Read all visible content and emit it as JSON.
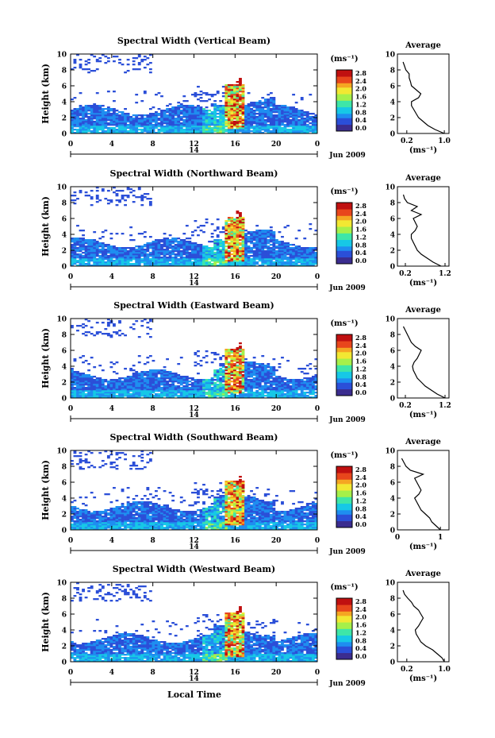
{
  "figure": {
    "xlabel": "Local Time",
    "date_label": "Jun 2009",
    "day_label": "14",
    "colorbar_unit": "(ms⁻¹)",
    "colorbar_ticks": [
      "0.0",
      "0.4",
      "0.8",
      "1.2",
      "1.6",
      "2.0",
      "2.4",
      "2.8"
    ],
    "average_title": "Average",
    "average_unit": "(ms⁻¹)"
  },
  "colors": {
    "scale": [
      "#3b2d8f",
      "#2b4fd8",
      "#1e8ef0",
      "#17c8e6",
      "#3ee6a8",
      "#a6f04a",
      "#f2e833",
      "#f5a623",
      "#e8461c",
      "#c01010"
    ],
    "background": "#ffffff",
    "axis": "#000000"
  },
  "chart_data": [
    {
      "type": "heatmap",
      "title": "Spectral Width (Vertical Beam)",
      "ylabel": "Height (km)",
      "xlim": [
        0,
        24
      ],
      "ylim": [
        0,
        10
      ],
      "xticks": [
        "0",
        "4",
        "8",
        "12",
        "16",
        "20",
        "0"
      ],
      "yticks": [
        "0",
        "2",
        "4",
        "6",
        "8",
        "10"
      ],
      "value_range": [
        0.0,
        2.8
      ],
      "average_profile": {
        "xticks": [
          "0.2",
          "1.0"
        ],
        "xlim": [
          0.0,
          1.1
        ],
        "height": [
          0,
          0.5,
          1,
          1.5,
          2,
          2.5,
          3,
          3.5,
          4,
          4.5,
          5,
          5.5,
          6,
          6.5,
          7,
          7.5,
          8,
          8.5,
          9
        ],
        "value": [
          1.0,
          0.8,
          0.65,
          0.55,
          0.45,
          0.4,
          0.35,
          0.3,
          0.3,
          0.45,
          0.5,
          0.4,
          0.3,
          0.28,
          0.25,
          0.25,
          0.18,
          0.15,
          0.12
        ]
      }
    },
    {
      "type": "heatmap",
      "title": "Spectral Width (Northward Beam)",
      "ylabel": "Height (km)",
      "xlim": [
        0,
        24
      ],
      "ylim": [
        0,
        10
      ],
      "xticks": [
        "0",
        "4",
        "8",
        "12",
        "16",
        "20",
        "0"
      ],
      "yticks": [
        "0",
        "2",
        "4",
        "6",
        "8",
        "10"
      ],
      "value_range": [
        0.0,
        2.8
      ],
      "average_profile": {
        "xticks": [
          "0.2",
          "1.2"
        ],
        "xlim": [
          0.0,
          1.3
        ],
        "height": [
          0,
          0.5,
          1,
          1.5,
          2,
          2.5,
          3,
          3.5,
          4,
          4.5,
          5,
          5.5,
          6,
          6.5,
          7,
          7.5,
          8,
          8.5,
          9
        ],
        "value": [
          1.1,
          0.9,
          0.75,
          0.6,
          0.5,
          0.45,
          0.4,
          0.35,
          0.35,
          0.45,
          0.5,
          0.45,
          0.4,
          0.6,
          0.35,
          0.5,
          0.25,
          0.18,
          0.15
        ]
      }
    },
    {
      "type": "heatmap",
      "title": "Spectral Width (Eastward Beam)",
      "ylabel": "Height (km)",
      "xlim": [
        0,
        24
      ],
      "ylim": [
        0,
        10
      ],
      "xticks": [
        "0",
        "4",
        "8",
        "12",
        "16",
        "20",
        "0"
      ],
      "yticks": [
        "0",
        "2",
        "4",
        "6",
        "8",
        "10"
      ],
      "value_range": [
        0.0,
        2.8
      ],
      "average_profile": {
        "xticks": [
          "0.2",
          "1.2"
        ],
        "xlim": [
          0.0,
          1.3
        ],
        "height": [
          0,
          0.5,
          1,
          1.5,
          2,
          2.5,
          3,
          3.5,
          4,
          4.5,
          5,
          5.5,
          6,
          6.5,
          7,
          7.5,
          8,
          8.5,
          9
        ],
        "value": [
          1.2,
          1.0,
          0.85,
          0.7,
          0.6,
          0.5,
          0.45,
          0.4,
          0.38,
          0.42,
          0.5,
          0.55,
          0.6,
          0.45,
          0.35,
          0.3,
          0.25,
          0.2,
          0.15
        ]
      }
    },
    {
      "type": "heatmap",
      "title": "Spectral Width (Southward Beam)",
      "ylabel": "Height (km)",
      "xlim": [
        0,
        24
      ],
      "ylim": [
        0,
        10
      ],
      "xticks": [
        "0",
        "4",
        "8",
        "12",
        "16",
        "20",
        "0"
      ],
      "yticks": [
        "0",
        "2",
        "4",
        "6",
        "8",
        "10"
      ],
      "value_range": [
        0.0,
        2.8
      ],
      "average_profile": {
        "xticks": [
          "0",
          "1"
        ],
        "xlim": [
          0.0,
          1.2
        ],
        "height": [
          0,
          0.5,
          1,
          1.5,
          2,
          2.5,
          3,
          3.5,
          4,
          4.5,
          5,
          5.5,
          6,
          6.5,
          7,
          7.5,
          8,
          8.5,
          9
        ],
        "value": [
          1.0,
          0.9,
          0.8,
          0.75,
          0.65,
          0.55,
          0.5,
          0.45,
          0.4,
          0.5,
          0.55,
          0.5,
          0.45,
          0.4,
          0.6,
          0.3,
          0.2,
          0.15,
          0.1
        ]
      }
    },
    {
      "type": "heatmap",
      "title": "Spectral Width (Westward Beam)",
      "ylabel": "Height (km)",
      "xlim": [
        0,
        24
      ],
      "ylim": [
        0,
        10
      ],
      "xticks": [
        "0",
        "4",
        "8",
        "12",
        "16",
        "20",
        "0"
      ],
      "yticks": [
        "0",
        "2",
        "4",
        "6",
        "8",
        "10"
      ],
      "value_range": [
        0.0,
        2.8
      ],
      "average_profile": {
        "xticks": [
          "0.2",
          "1.0"
        ],
        "xlim": [
          0.0,
          1.1
        ],
        "height": [
          0,
          0.5,
          1,
          1.5,
          2,
          2.5,
          3,
          3.5,
          4,
          4.5,
          5,
          5.5,
          6,
          6.5,
          7,
          7.5,
          8,
          8.5,
          9
        ],
        "value": [
          1.0,
          0.95,
          0.85,
          0.75,
          0.6,
          0.5,
          0.45,
          0.4,
          0.38,
          0.45,
          0.5,
          0.55,
          0.5,
          0.45,
          0.35,
          0.3,
          0.22,
          0.15,
          0.12
        ]
      }
    }
  ]
}
